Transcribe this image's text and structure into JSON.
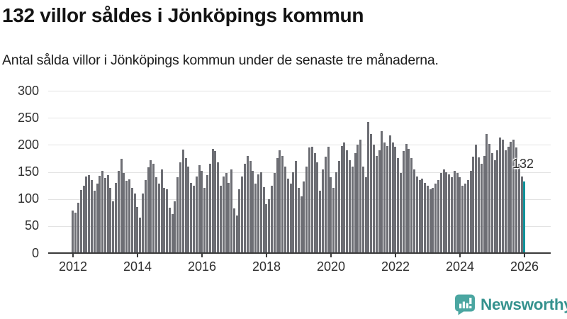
{
  "chart_data": {
    "type": "bar",
    "title": "132 villor såldes i Jönköpings kommun",
    "subtitle": "Antal sålda villor i Jönköpings kommun under de senaste tre månaderna.",
    "xlabel": "",
    "ylabel": "",
    "ylim": [
      0,
      300
    ],
    "y_ticks": [
      0,
      50,
      100,
      150,
      200,
      250,
      300
    ],
    "x_ticks": [
      2012,
      2014,
      2016,
      2018,
      2020,
      2022,
      2024,
      2026
    ],
    "grid": "horizontal",
    "legend": "none",
    "start_month": "2012-01",
    "end_month": "2026-01",
    "values": [
      78,
      75,
      93,
      116,
      124,
      141,
      144,
      135,
      115,
      128,
      143,
      152,
      139,
      144,
      120,
      96,
      130,
      152,
      174,
      148,
      133,
      136,
      121,
      110,
      85,
      65,
      110,
      135,
      158,
      172,
      165,
      140,
      128,
      155,
      120,
      118,
      84,
      72,
      96,
      140,
      168,
      191,
      175,
      160,
      130,
      125,
      142,
      163,
      152,
      120,
      144,
      165,
      192,
      188,
      168,
      125,
      142,
      148,
      130,
      155,
      82,
      70,
      118,
      142,
      165,
      180,
      170,
      152,
      128,
      145,
      150,
      122,
      90,
      100,
      125,
      148,
      175,
      190,
      180,
      160,
      138,
      128,
      150,
      170,
      120,
      105,
      132,
      160,
      195,
      196,
      185,
      168,
      115,
      155,
      178,
      196,
      140,
      120,
      150,
      170,
      198,
      205,
      190,
      172,
      160,
      185,
      200,
      210,
      160,
      140,
      243,
      220,
      200,
      180,
      190,
      225,
      205,
      198,
      217,
      205,
      196,
      175,
      148,
      188,
      202,
      192,
      175,
      155,
      142,
      135,
      138,
      130,
      125,
      118,
      120,
      128,
      135,
      148,
      155,
      150,
      145,
      140,
      152,
      148,
      140,
      125,
      128,
      135,
      152,
      178,
      200,
      177,
      165,
      180,
      220,
      202,
      185,
      172,
      190,
      214,
      209,
      190,
      196,
      206,
      210,
      195,
      165,
      141,
      132
    ],
    "highlight_index": 168,
    "annotation": {
      "label": "132",
      "value": 132
    },
    "colors": {
      "bar": "#6d6e74",
      "highlight": "#12939b",
      "gridline": "#e3e3e3",
      "axis": "#3a3a3a",
      "tick_label": "#2f2f2f"
    }
  },
  "branding": {
    "wordmark": "Newsworthy",
    "logo_icon": "speech-bubble-bar-chart-icon",
    "colors": {
      "bubble": "#4ba6a1",
      "wordmark_text": "#35928e"
    }
  }
}
